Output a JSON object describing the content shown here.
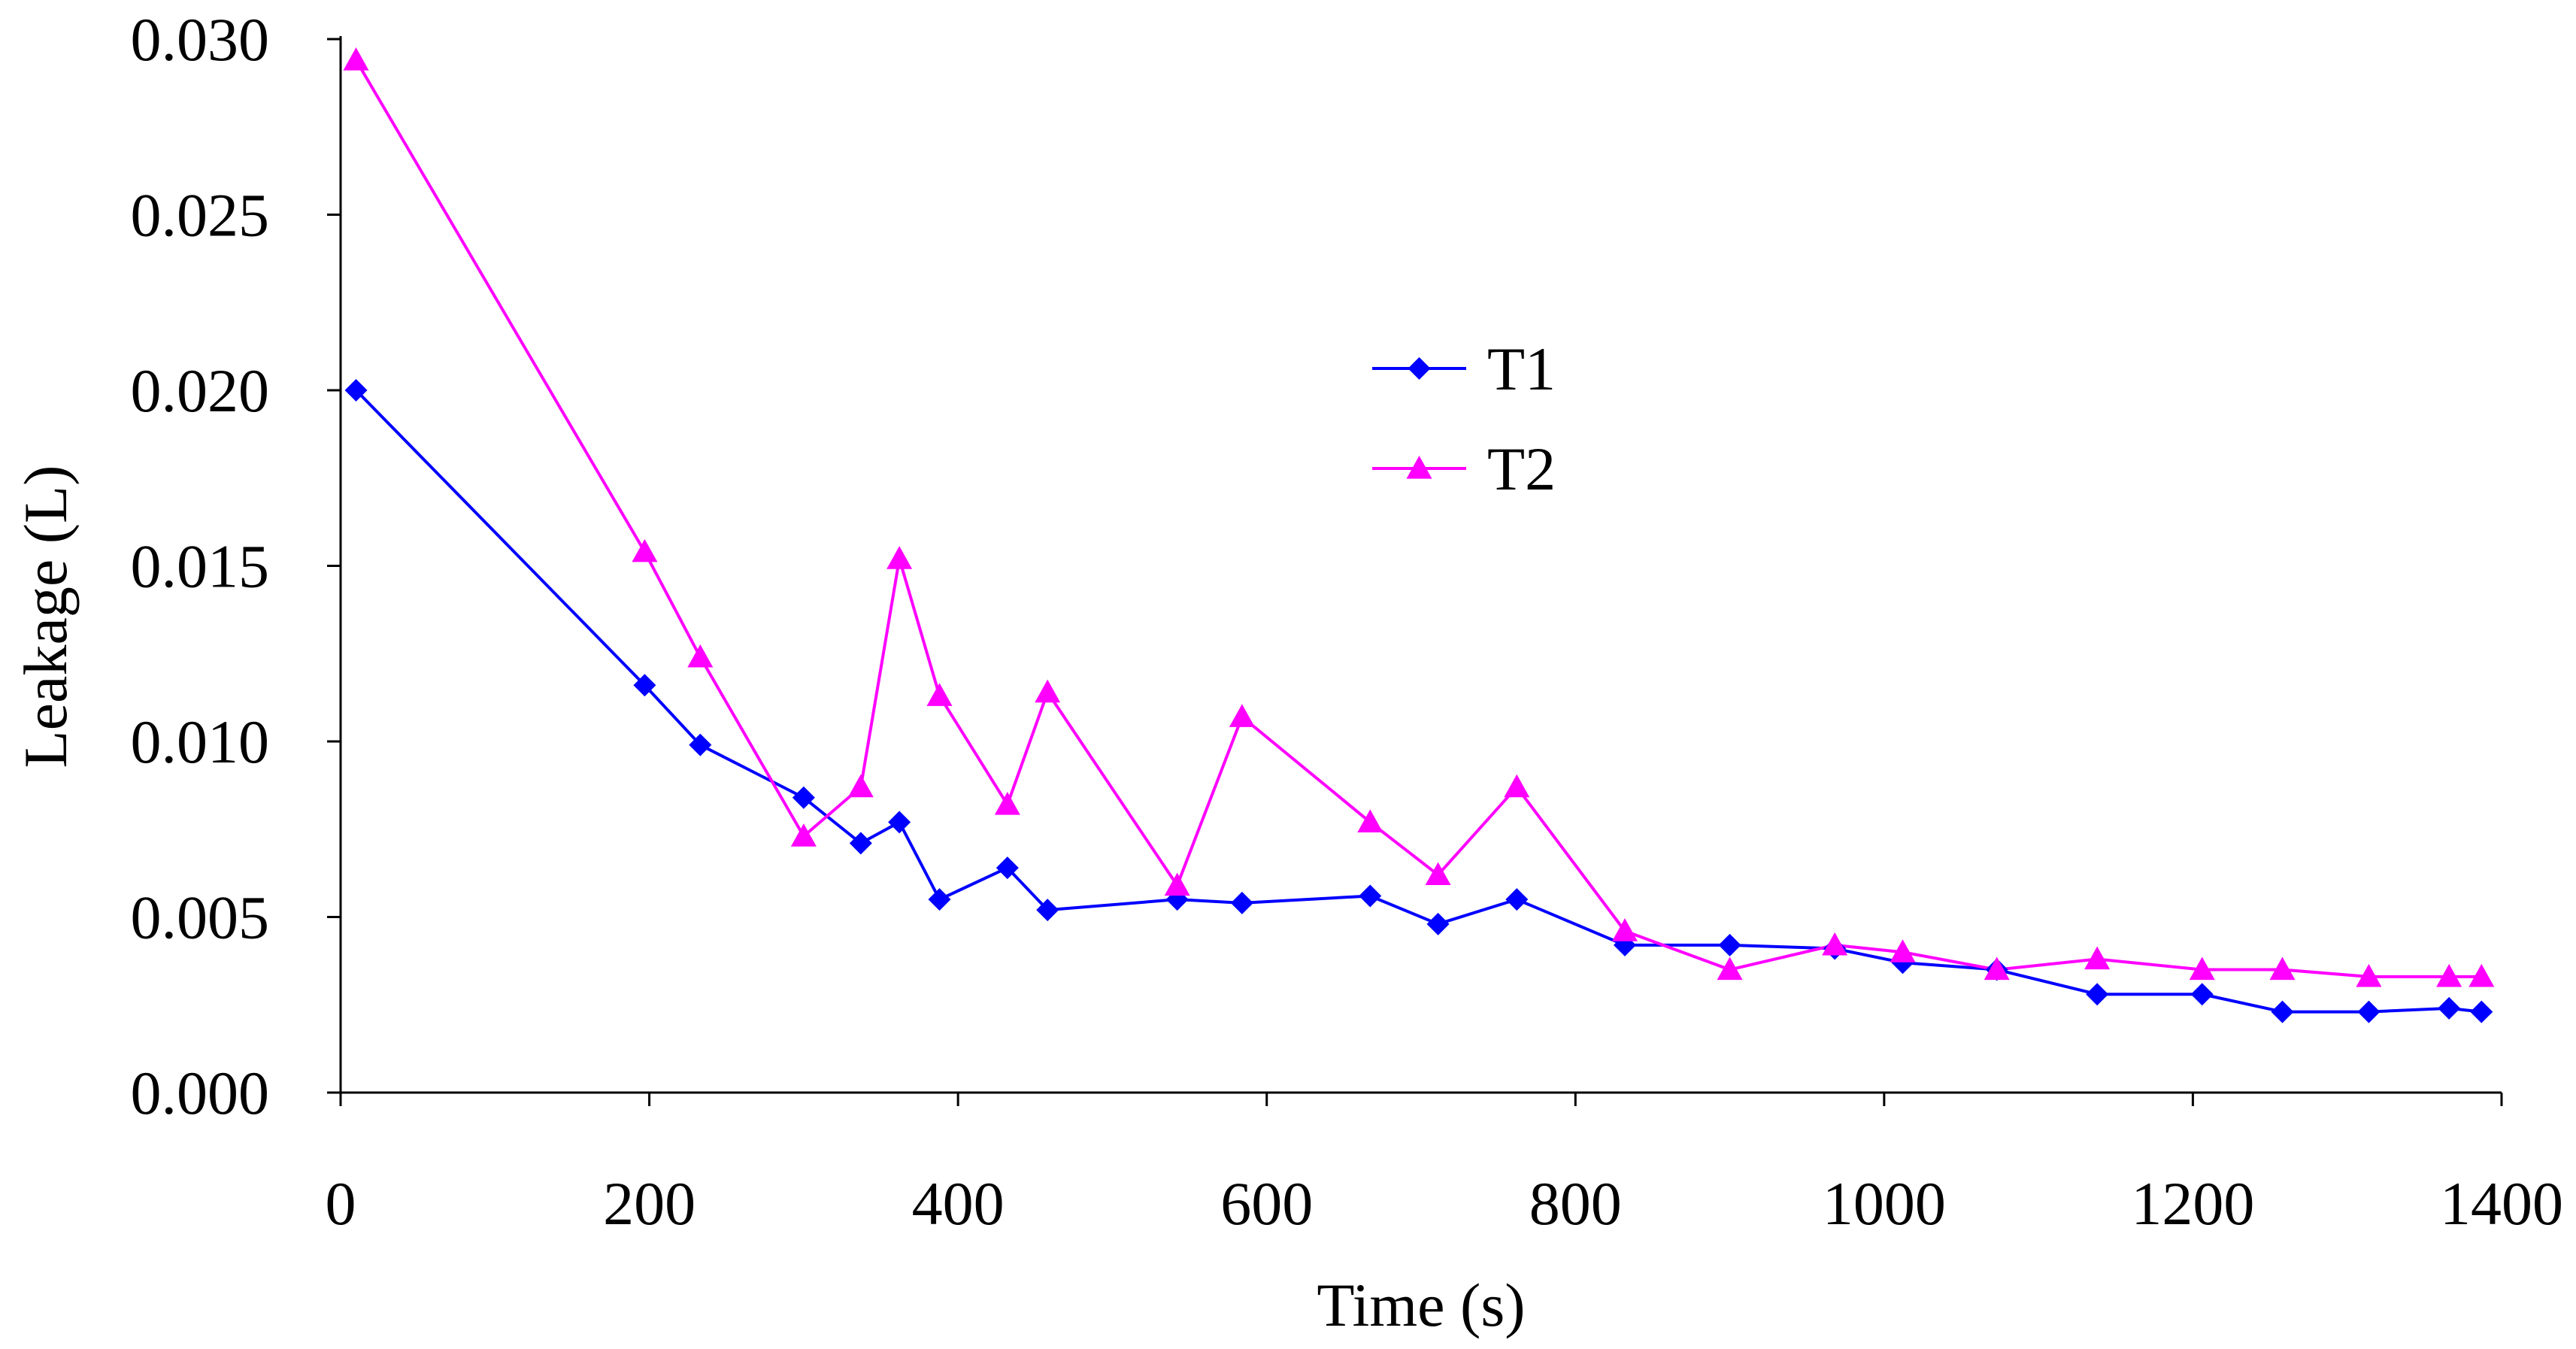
{
  "chart_data": {
    "type": "line",
    "title": "",
    "xlabel": "Time (s)",
    "ylabel": "Leakage (L)",
    "xlim": [
      0,
      1400
    ],
    "ylim": [
      0,
      0.03
    ],
    "xticks": [
      0,
      200,
      400,
      600,
      800,
      1000,
      1200,
      1400
    ],
    "xtick_labels": [
      "0",
      "200",
      "400",
      "600",
      "800",
      "1000",
      "1200",
      "1400"
    ],
    "yticks": [
      0,
      0.005,
      0.01,
      0.015,
      0.02,
      0.025,
      0.03
    ],
    "ytick_labels": [
      "0.000",
      "0.005",
      "0.010",
      "0.015",
      "0.020",
      "0.025",
      "0.030"
    ],
    "grid": false,
    "legend_position": "center-right",
    "series": [
      {
        "name": "T1",
        "color": "#0000ff",
        "marker": "diamond",
        "points": [
          [
            10,
            0.02
          ],
          [
            197,
            0.0116
          ],
          [
            233,
            0.0099
          ],
          [
            300,
            0.0084
          ],
          [
            337,
            0.0071
          ],
          [
            362,
            0.0077
          ],
          [
            388,
            0.0055
          ],
          [
            432,
            0.0064
          ],
          [
            458,
            0.0052
          ],
          [
            542,
            0.0055
          ],
          [
            584,
            0.0054
          ],
          [
            667,
            0.0056
          ],
          [
            711,
            0.0048
          ],
          [
            762,
            0.0055
          ],
          [
            832,
            0.0042
          ],
          [
            900,
            0.0042
          ],
          [
            968,
            0.0041
          ],
          [
            1012,
            0.0037
          ],
          [
            1073,
            0.0035
          ],
          [
            1138,
            0.0028
          ],
          [
            1206,
            0.0028
          ],
          [
            1258,
            0.0023
          ],
          [
            1314,
            0.0023
          ],
          [
            1366,
            0.0024
          ],
          [
            1387,
            0.0023
          ]
        ]
      },
      {
        "name": "T2",
        "color": "#ff00ff",
        "marker": "triangle",
        "points": [
          [
            10,
            0.0294
          ],
          [
            197,
            0.0154
          ],
          [
            233,
            0.0124
          ],
          [
            300,
            0.0073
          ],
          [
            337,
            0.0087
          ],
          [
            362,
            0.0152
          ],
          [
            388,
            0.0113
          ],
          [
            432,
            0.0082
          ],
          [
            458,
            0.0114
          ],
          [
            542,
            0.0059
          ],
          [
            584,
            0.0107
          ],
          [
            667,
            0.0077
          ],
          [
            711,
            0.0062
          ],
          [
            762,
            0.0087
          ],
          [
            832,
            0.0046
          ],
          [
            900,
            0.0035
          ],
          [
            968,
            0.0042
          ],
          [
            1012,
            0.004
          ],
          [
            1073,
            0.0035
          ],
          [
            1138,
            0.0038
          ],
          [
            1206,
            0.0035
          ],
          [
            1258,
            0.0035
          ],
          [
            1314,
            0.0033
          ],
          [
            1366,
            0.0033
          ],
          [
            1387,
            0.0033
          ]
        ]
      }
    ]
  }
}
